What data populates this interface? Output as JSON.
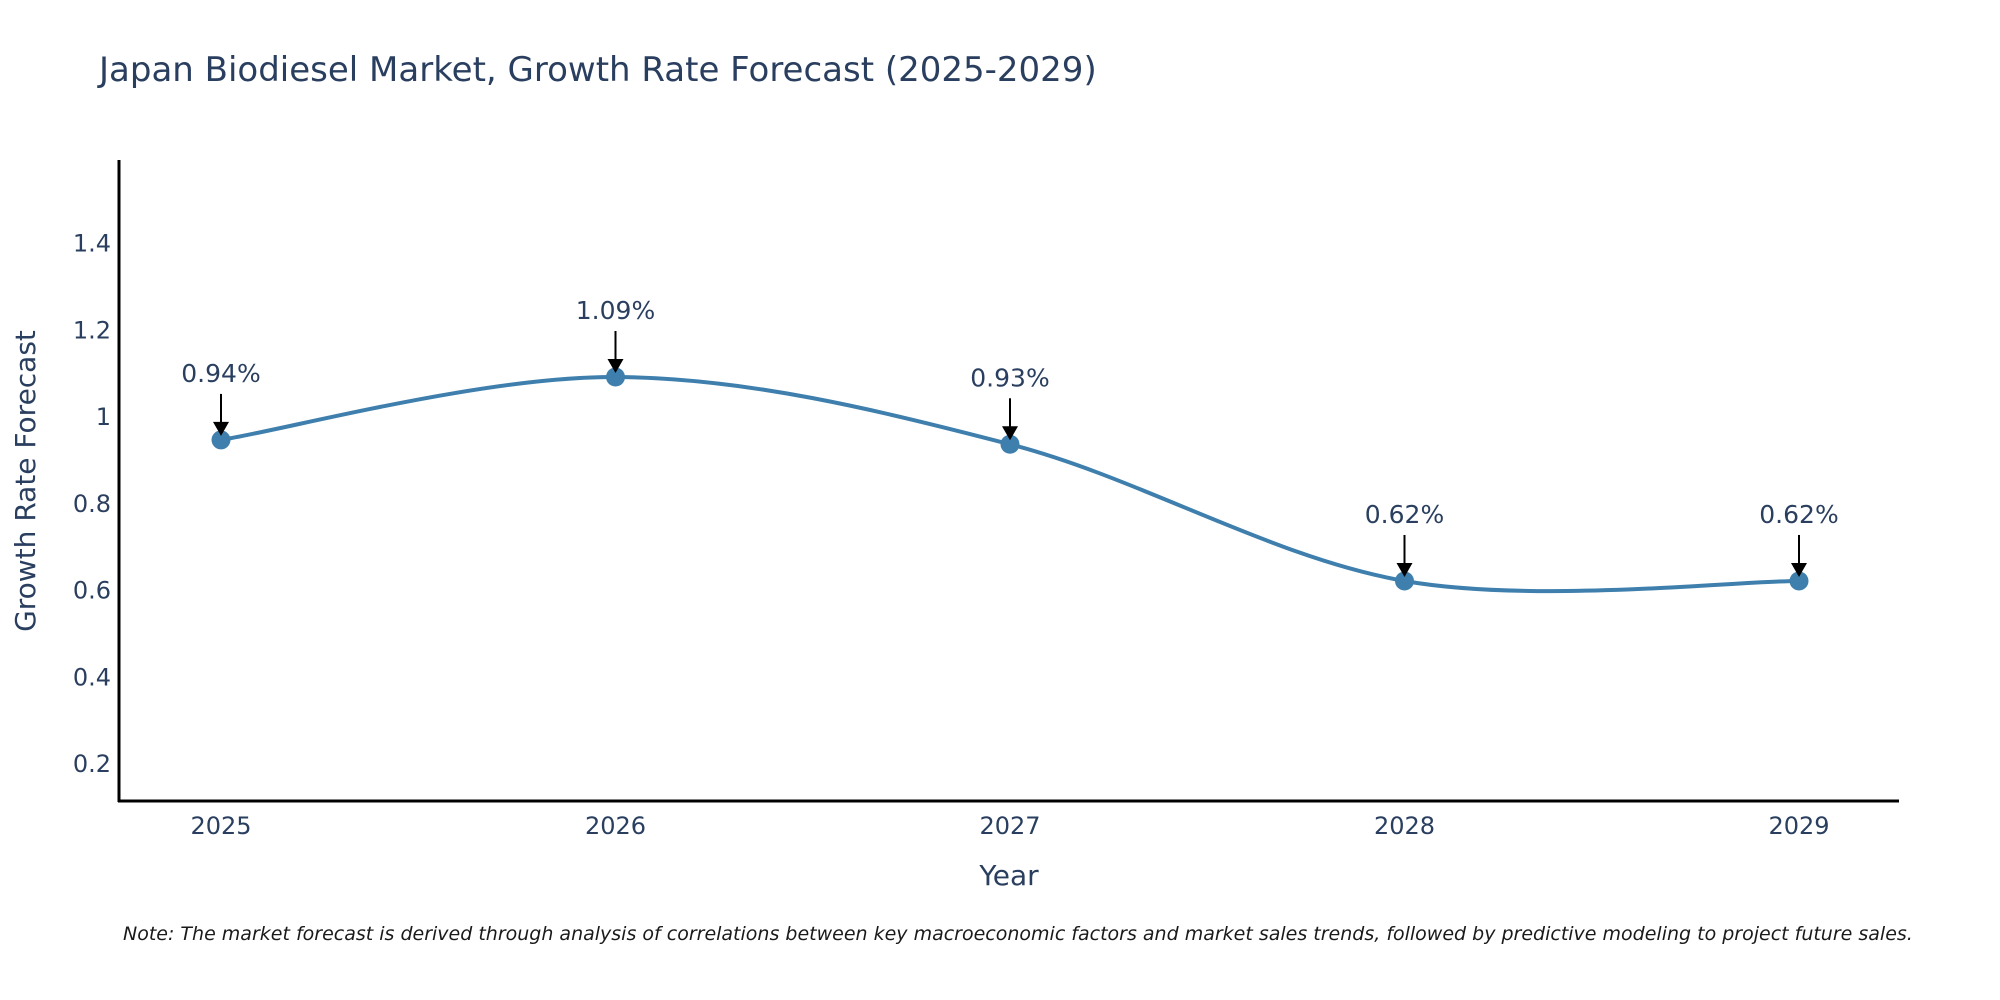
{
  "chart_data": {
    "type": "line",
    "title": "Japan Biodiesel Market, Growth Rate Forecast (2025-2029)",
    "xlabel": "Year",
    "ylabel": "Growth Rate Forecast",
    "categories": [
      "2025",
      "2026",
      "2027",
      "2028",
      "2029"
    ],
    "series": [
      {
        "name": "Growth Rate Forecast",
        "values": [
          0.945,
          1.09,
          0.935,
          0.62,
          0.62
        ],
        "labels": [
          "0.94%",
          "1.09%",
          "0.93%",
          "0.62%",
          "0.62%"
        ]
      }
    ],
    "yticks": [
      0.2,
      0.4,
      0.6,
      0.8,
      1,
      1.2,
      1.4
    ],
    "ytick_labels": [
      "0.2",
      "0.4",
      "0.6",
      "0.8",
      "1",
      "1.2",
      "1.4"
    ],
    "ylim": [
      0.113,
      1.59
    ],
    "grid": false,
    "line_color": "#3f7fad",
    "marker_color": "#3f7fad",
    "axis_color": "#000000",
    "text_color": "#2a3f5f",
    "note": "Note: The market forecast is derived through analysis of correlations between key macroeconomic factors and market sales trends, followed by predictive modeling to project future sales."
  }
}
